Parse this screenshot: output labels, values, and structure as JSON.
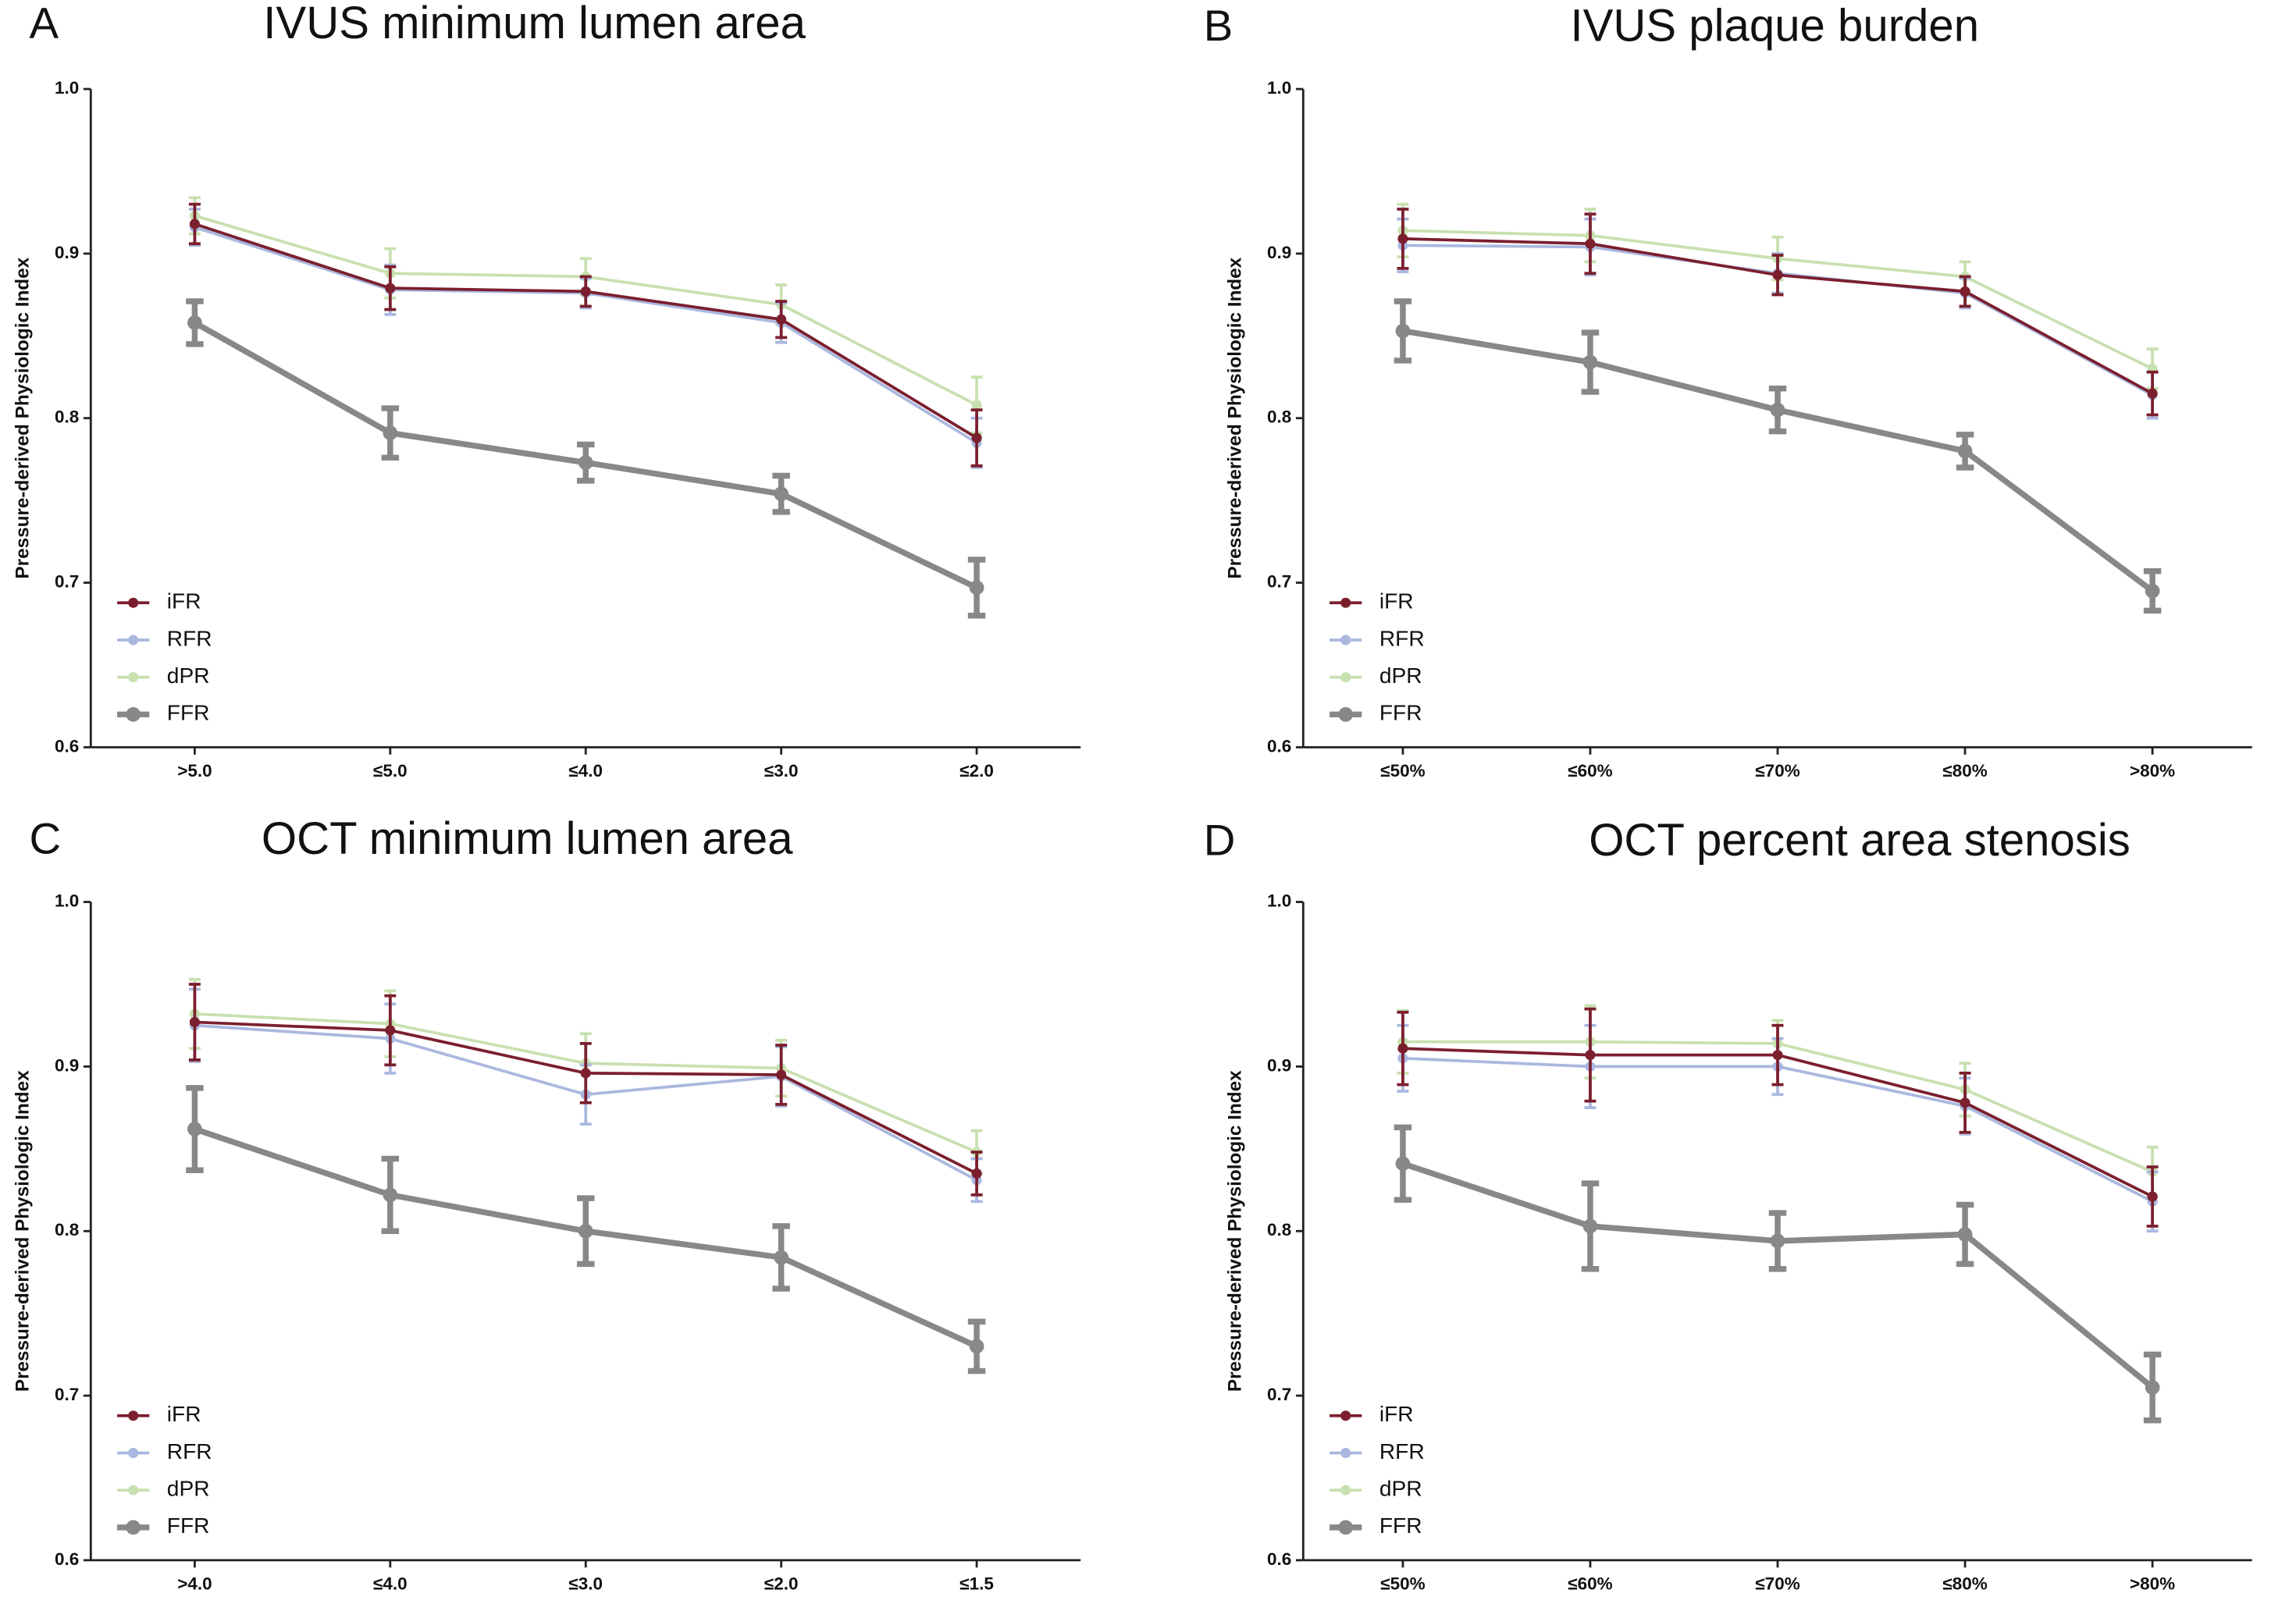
{
  "chart_data": [
    {
      "type": "line",
      "panel": "A",
      "title": "IVUS minimum lumen area",
      "ylabel": "Pressure-derived Physiologic Index",
      "categories": [
        ">5.0",
        "≤5.0",
        "≤4.0",
        "≤3.0",
        "≤2.0"
      ],
      "ylim": [
        0.6,
        1.0
      ],
      "yticks": [
        0.6,
        0.7,
        0.8,
        0.9,
        {
          "value": 1.0,
          "label": "1.0"
        }
      ],
      "series": [
        {
          "name": "iFR",
          "color": "#7b1f2e",
          "values": [
            0.918,
            0.879,
            0.877,
            0.86,
            0.788
          ],
          "errors": [
            0.012,
            0.013,
            0.009,
            0.011,
            0.017
          ]
        },
        {
          "name": "RFR",
          "color": "#aab8e0",
          "values": [
            0.916,
            0.878,
            0.876,
            0.858,
            0.785
          ],
          "errors": [
            0.011,
            0.015,
            0.009,
            0.012,
            0.015
          ]
        },
        {
          "name": "dPR",
          "color": "#c8e0b0",
          "values": [
            0.923,
            0.888,
            0.886,
            0.869,
            0.808
          ],
          "errors": [
            0.011,
            0.015,
            0.011,
            0.012,
            0.017
          ]
        },
        {
          "name": "FFR",
          "color": "#888888",
          "values": [
            0.858,
            0.791,
            0.773,
            0.754,
            0.697
          ],
          "errors": [
            0.013,
            0.015,
            0.011,
            0.011,
            0.017
          ]
        }
      ]
    },
    {
      "type": "line",
      "panel": "B",
      "title": "IVUS plaque burden",
      "ylabel": "Pressure-derived Physiologic Index",
      "categories": [
        "≤50%",
        "≤60%",
        "≤70%",
        "≤80%",
        ">80%"
      ],
      "ylim": [
        0.6,
        1.0
      ],
      "yticks": [
        0.6,
        0.7,
        0.8,
        0.9,
        {
          "value": 1.0,
          "label": "1.0"
        }
      ],
      "series": [
        {
          "name": "iFR",
          "color": "#7b1f2e",
          "values": [
            0.909,
            0.906,
            0.887,
            0.877,
            0.815
          ],
          "errors": [
            0.018,
            0.018,
            0.012,
            0.009,
            0.013
          ]
        },
        {
          "name": "RFR",
          "color": "#aab8e0",
          "values": [
            0.905,
            0.904,
            0.888,
            0.876,
            0.814
          ],
          "errors": [
            0.016,
            0.017,
            0.012,
            0.009,
            0.014
          ]
        },
        {
          "name": "dPR",
          "color": "#c8e0b0",
          "values": [
            0.914,
            0.911,
            0.897,
            0.886,
            0.83
          ],
          "errors": [
            0.016,
            0.016,
            0.013,
            0.009,
            0.012
          ]
        },
        {
          "name": "FFR",
          "color": "#888888",
          "values": [
            0.853,
            0.834,
            0.805,
            0.78,
            0.695
          ],
          "errors": [
            0.018,
            0.018,
            0.013,
            0.01,
            0.012
          ]
        }
      ]
    },
    {
      "type": "line",
      "panel": "C",
      "title": "OCT minimum lumen area",
      "ylabel": "Pressure-derived Physiologic Index",
      "categories": [
        ">4.0",
        "≤4.0",
        "≤3.0",
        "≤2.0",
        "≤1.5"
      ],
      "ylim": [
        0.6,
        1.0
      ],
      "yticks": [
        0.6,
        0.7,
        0.8,
        0.9,
        {
          "value": 1.0,
          "label": "1.0"
        }
      ],
      "series": [
        {
          "name": "iFR",
          "color": "#7b1f2e",
          "values": [
            0.927,
            0.922,
            0.896,
            0.895,
            0.835
          ],
          "errors": [
            0.023,
            0.021,
            0.018,
            0.018,
            0.013
          ]
        },
        {
          "name": "RFR",
          "color": "#aab8e0",
          "values": [
            0.925,
            0.917,
            0.883,
            0.894,
            0.831
          ],
          "errors": [
            0.022,
            0.021,
            0.018,
            0.018,
            0.013
          ]
        },
        {
          "name": "dPR",
          "color": "#c8e0b0",
          "values": [
            0.932,
            0.926,
            0.902,
            0.899,
            0.848
          ],
          "errors": [
            0.021,
            0.02,
            0.018,
            0.017,
            0.013
          ]
        },
        {
          "name": "FFR",
          "color": "#888888",
          "values": [
            0.862,
            0.822,
            0.8,
            0.784,
            0.73
          ],
          "errors": [
            0.025,
            0.022,
            0.02,
            0.019,
            0.015
          ]
        }
      ]
    },
    {
      "type": "line",
      "panel": "D",
      "title": "OCT percent area stenosis",
      "ylabel": "Pressure-derived Physiologic Index",
      "categories": [
        "≤50%",
        "≤60%",
        "≤70%",
        "≤80%",
        ">80%"
      ],
      "ylim": [
        0.6,
        1.0
      ],
      "yticks": [
        0.6,
        0.7,
        0.8,
        0.9,
        {
          "value": 1.0,
          "label": "1.0"
        }
      ],
      "series": [
        {
          "name": "iFR",
          "color": "#7b1f2e",
          "values": [
            0.911,
            0.907,
            0.907,
            0.878,
            0.821
          ],
          "errors": [
            0.022,
            0.028,
            0.018,
            0.018,
            0.018
          ]
        },
        {
          "name": "RFR",
          "color": "#aab8e0",
          "values": [
            0.905,
            0.9,
            0.9,
            0.876,
            0.818
          ],
          "errors": [
            0.02,
            0.025,
            0.017,
            0.017,
            0.018
          ]
        },
        {
          "name": "dPR",
          "color": "#c8e0b0",
          "values": [
            0.915,
            0.915,
            0.914,
            0.886,
            0.836
          ],
          "errors": [
            0.019,
            0.022,
            0.014,
            0.016,
            0.015
          ]
        },
        {
          "name": "FFR",
          "color": "#888888",
          "values": [
            0.841,
            0.803,
            0.794,
            0.798,
            0.705
          ],
          "errors": [
            0.022,
            0.026,
            0.017,
            0.018,
            0.02
          ]
        }
      ]
    }
  ]
}
